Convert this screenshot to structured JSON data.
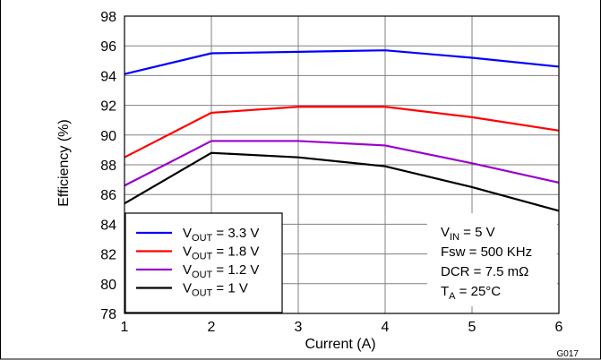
{
  "chart_data": {
    "type": "line",
    "xlabel": "Current (A)",
    "ylabel": "Efficiency (%)",
    "xlim": [
      1,
      6
    ],
    "ylim": [
      78,
      98
    ],
    "xticks": [
      1,
      2,
      3,
      4,
      5,
      6
    ],
    "yticks": [
      78,
      80,
      82,
      84,
      86,
      88,
      90,
      92,
      94,
      96,
      98
    ],
    "grid": true,
    "legend_position": "bottom-left",
    "x": [
      1,
      2,
      3,
      4,
      5,
      6
    ],
    "series": [
      {
        "name": "V_OUT = 3.3 V",
        "label_main": "V",
        "label_sub": "OUT",
        "label_rest": " = 3.3 V",
        "color": "#0000ff",
        "values": [
          94.1,
          95.5,
          95.6,
          95.7,
          95.2,
          94.6
        ]
      },
      {
        "name": "V_OUT = 1.8 V",
        "label_main": "V",
        "label_sub": "OUT",
        "label_rest": " = 1.8 V",
        "color": "#ff0000",
        "values": [
          88.5,
          91.5,
          91.9,
          91.9,
          91.2,
          90.3
        ]
      },
      {
        "name": "V_OUT = 1.2 V",
        "label_main": "V",
        "label_sub": "OUT",
        "label_rest": " = 1.2 V",
        "color": "#9900cc",
        "values": [
          86.6,
          89.6,
          89.6,
          89.3,
          88.1,
          86.8
        ]
      },
      {
        "name": "V_OUT = 1 V",
        "label_main": "V",
        "label_sub": "OUT",
        "label_rest": " = 1 V",
        "color": "#000000",
        "values": [
          85.4,
          88.8,
          88.5,
          87.9,
          86.5,
          84.9
        ]
      }
    ],
    "annotations": [
      {
        "main": "V",
        "sub": "IN",
        "rest": " = 5 V"
      },
      {
        "main": "Fsw = 500 KHz",
        "sub": "",
        "rest": ""
      },
      {
        "main": "DCR = 7.5 mΩ",
        "sub": "",
        "rest": ""
      },
      {
        "main": "T",
        "sub": "A",
        "rest": " = 25°C"
      }
    ],
    "figure_code": "G017"
  }
}
